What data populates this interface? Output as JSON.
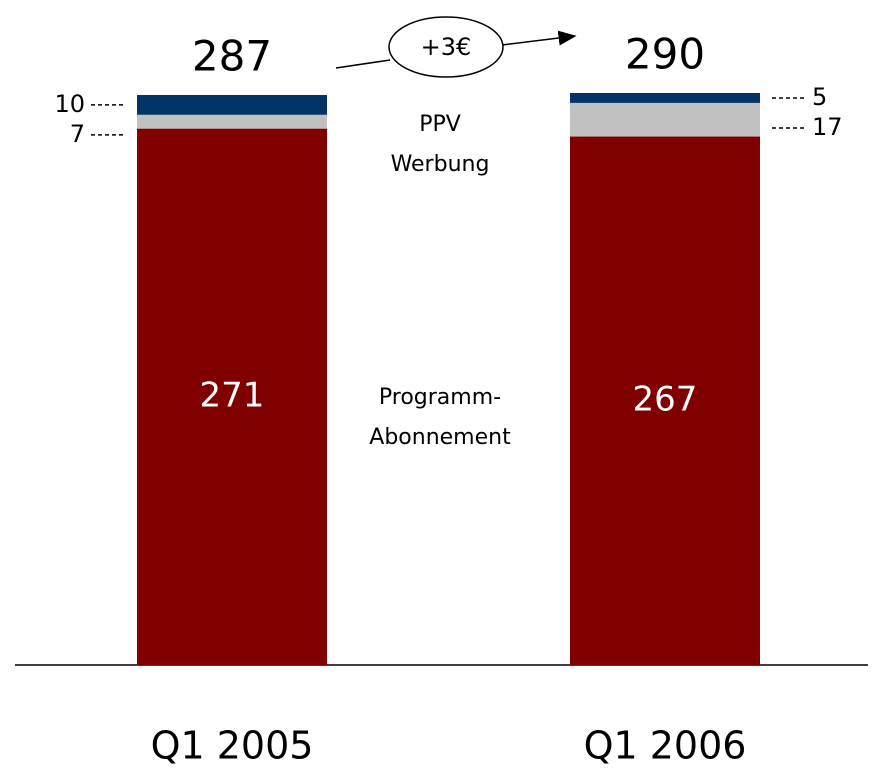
{
  "chart_data": {
    "type": "stacked_bar",
    "categories": [
      "Q1 2005",
      "Q1 2006"
    ],
    "series": [
      {
        "name": "Programm-Abonnement",
        "color": "#800000",
        "values": [
          271,
          267
        ]
      },
      {
        "name": "Werbung",
        "color": "#c0c0c0",
        "values": [
          7,
          17
        ]
      },
      {
        "name": "PPV",
        "color": "#003366",
        "values": [
          10,
          5
        ]
      }
    ],
    "totals": [
      287,
      290
    ],
    "annotation": "+3€"
  }
}
